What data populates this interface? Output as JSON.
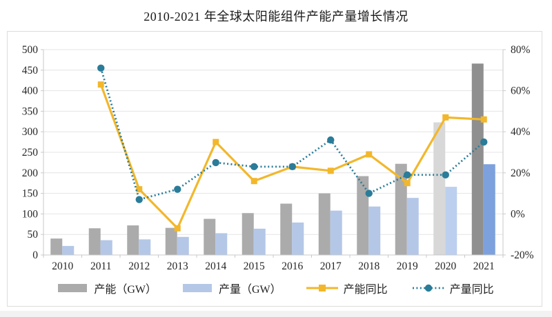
{
  "page": {
    "title": "2010-2021 年全球太阳能组件产能产量增长情况"
  },
  "chart_data": {
    "type": "combo-bar-line",
    "title": "2010-2021 年全球太阳能组件产能产量增长情况",
    "categories": [
      "2010",
      "2011",
      "2012",
      "2013",
      "2014",
      "2015",
      "2016",
      "2017",
      "2018",
      "2019",
      "2020",
      "2021"
    ],
    "series": [
      {
        "name": "产能（GW）",
        "type": "bar",
        "axis": "left",
        "values": [
          40,
          65,
          72,
          66,
          88,
          102,
          125,
          150,
          192,
          222,
          323,
          466
        ],
        "colors": [
          "#ABABAB",
          "#ABABAB",
          "#ABABAB",
          "#ABABAB",
          "#ABABAB",
          "#ABABAB",
          "#ABABAB",
          "#ABABAB",
          "#ABABAB",
          "#ABABAB",
          "#D8D8D8",
          "#8F8F8F"
        ]
      },
      {
        "name": "产量（GW）",
        "type": "bar",
        "axis": "left",
        "values": [
          22,
          36,
          38,
          44,
          53,
          64,
          79,
          108,
          118,
          139,
          166,
          221
        ],
        "colors": [
          "#B4C7E7",
          "#B4C7E7",
          "#B4C7E7",
          "#B4C7E7",
          "#B4C7E7",
          "#B4C7E7",
          "#B4C7E7",
          "#B4C7E7",
          "#B4C7E7",
          "#B4C7E7",
          "#BCCFEE",
          "#7DA1DC"
        ]
      },
      {
        "name": "产能同比",
        "type": "line",
        "axis": "right",
        "marker": "square",
        "color": "#F2B72B",
        "values": [
          null,
          63,
          12,
          -7,
          35,
          16,
          23,
          21,
          29,
          15,
          47,
          46
        ]
      },
      {
        "name": "产量同比",
        "type": "line-dotted",
        "axis": "right",
        "marker": "circle",
        "color": "#2A7C99",
        "values": [
          null,
          71,
          7,
          12,
          25,
          23,
          23,
          36,
          10,
          19,
          19,
          35
        ]
      }
    ],
    "left_axis": {
      "min": 0,
      "max": 500,
      "step": 50,
      "tick_labels": [
        "0",
        "50",
        "100",
        "150",
        "200",
        "250",
        "300",
        "350",
        "400",
        "450",
        "500"
      ]
    },
    "right_axis": {
      "min": -20,
      "max": 80,
      "step": 20,
      "tick_labels": [
        "-20%",
        "0%",
        "20%",
        "40%",
        "60%",
        "80%"
      ]
    },
    "legend": [
      {
        "label": "产能（GW）",
        "type": "bar",
        "color": "#ABABAB"
      },
      {
        "label": "产量（GW）",
        "type": "bar",
        "color": "#B4C7E7"
      },
      {
        "label": "产能同比",
        "type": "line",
        "color": "#F2B72B"
      },
      {
        "label": "产量同比",
        "type": "dotted",
        "color": "#2A7C99"
      }
    ],
    "grid": true,
    "legend_position": "bottom"
  },
  "colors": {
    "gridline": "#e4e4e4",
    "axis_line": "#c9c9c9",
    "tick_text": "#262626",
    "border": "#dcdcdc",
    "capacity_bar": "#ABABAB",
    "capacity_bar_2020": "#D8D8D8",
    "capacity_bar_2021": "#8F8F8F",
    "production_bar": "#B4C7E7",
    "production_bar_2021": "#7DA1DC",
    "capacity_yoy_line": "#F2B72B",
    "production_yoy_line": "#2A7C99"
  }
}
